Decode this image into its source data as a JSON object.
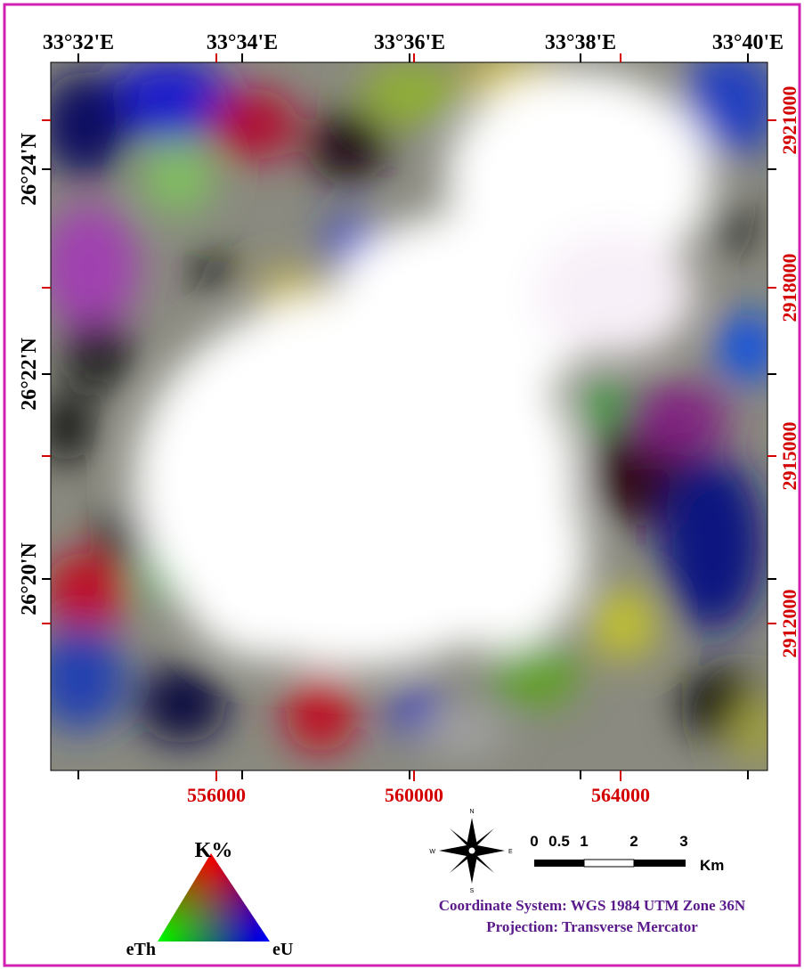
{
  "map": {
    "top_labels": [
      "33°32'E",
      "33°34'E",
      "33°36'E",
      "33°38'E",
      "33°40'E"
    ],
    "left_labels": [
      "26°24'N",
      "26°22'N",
      "26°20'N"
    ],
    "right_labels": [
      "2921000",
      "2918000",
      "2915000",
      "2912000"
    ],
    "bottom_labels": [
      "556000",
      "560000",
      "564000"
    ]
  },
  "legend": {
    "top": "K%",
    "left": "eTh",
    "right": "eU"
  },
  "compass": {
    "n": "N",
    "s": "S",
    "e": "E",
    "w": "W"
  },
  "scale": {
    "labels": [
      "0",
      "0.5",
      "1",
      "2",
      "3"
    ],
    "unit": "Km"
  },
  "info": {
    "line1": "Coordinate System: WGS 1984 UTM Zone 36N",
    "line2": "Projection: Transverse Mercator"
  }
}
